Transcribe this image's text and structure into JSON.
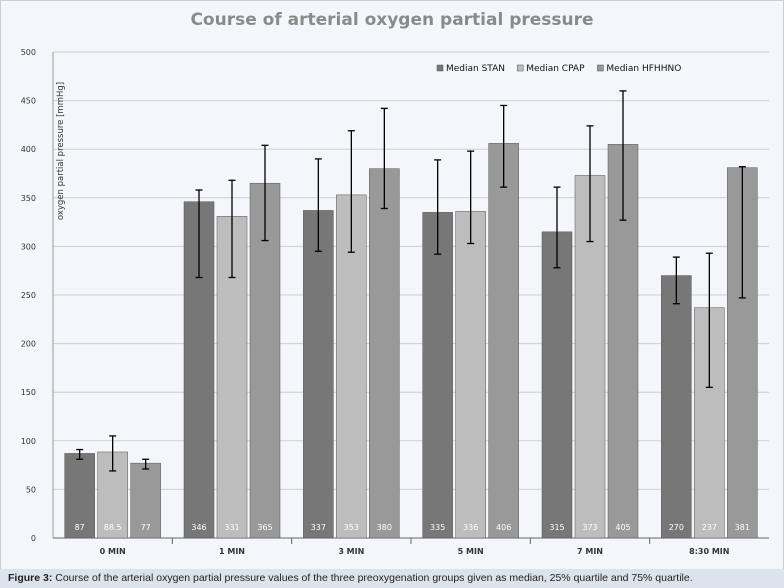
{
  "chart_data": {
    "type": "bar",
    "title": "Course of arterial oxygen partial pressure",
    "ylabel": "oxygen partial pressure [mmHg]",
    "xlabel": "",
    "ylim": [
      0,
      500
    ],
    "yticks": [
      0,
      50,
      100,
      150,
      200,
      250,
      300,
      350,
      400,
      450,
      500
    ],
    "categories": [
      "0 MIN",
      "1 MIN",
      "3 MIN",
      "5 MIN",
      "7 MIN",
      "8:30 MIN"
    ],
    "grid": true,
    "legend": "top-right",
    "series": [
      {
        "name": "Median STAN",
        "color": "#777777",
        "values": [
          87,
          346,
          337,
          335,
          315,
          270
        ],
        "labels": [
          "87",
          "346",
          "337",
          "335",
          "315",
          "270"
        ],
        "q25": [
          81,
          268,
          295,
          292,
          278,
          241
        ],
        "q75": [
          91,
          358,
          390,
          389,
          361,
          289
        ]
      },
      {
        "name": "Median CPAP",
        "color": "#bdbdbd",
        "values": [
          88.5,
          331,
          353,
          336,
          373,
          237
        ],
        "labels": [
          "88.5",
          "331",
          "353",
          "336",
          "373",
          "237"
        ],
        "q25": [
          69,
          268,
          294,
          303,
          305,
          155
        ],
        "q75": [
          105,
          368,
          419,
          398,
          424,
          293
        ]
      },
      {
        "name": "Median HFHHNO",
        "color": "#999999",
        "values": [
          77,
          365,
          380,
          406,
          405,
          381
        ],
        "labels": [
          "77",
          "365",
          "380",
          "406",
          "405",
          "381"
        ],
        "q25": [
          71,
          306,
          339,
          361,
          327,
          247
        ],
        "q75": [
          81,
          404,
          442,
          445,
          460,
          382
        ]
      }
    ]
  },
  "caption": {
    "label": "Figure 3:",
    "text": " Course of the arterial oxygen partial pressure values of the three preoxygenation groups given as median, 25% quartile and 75% quartile."
  }
}
